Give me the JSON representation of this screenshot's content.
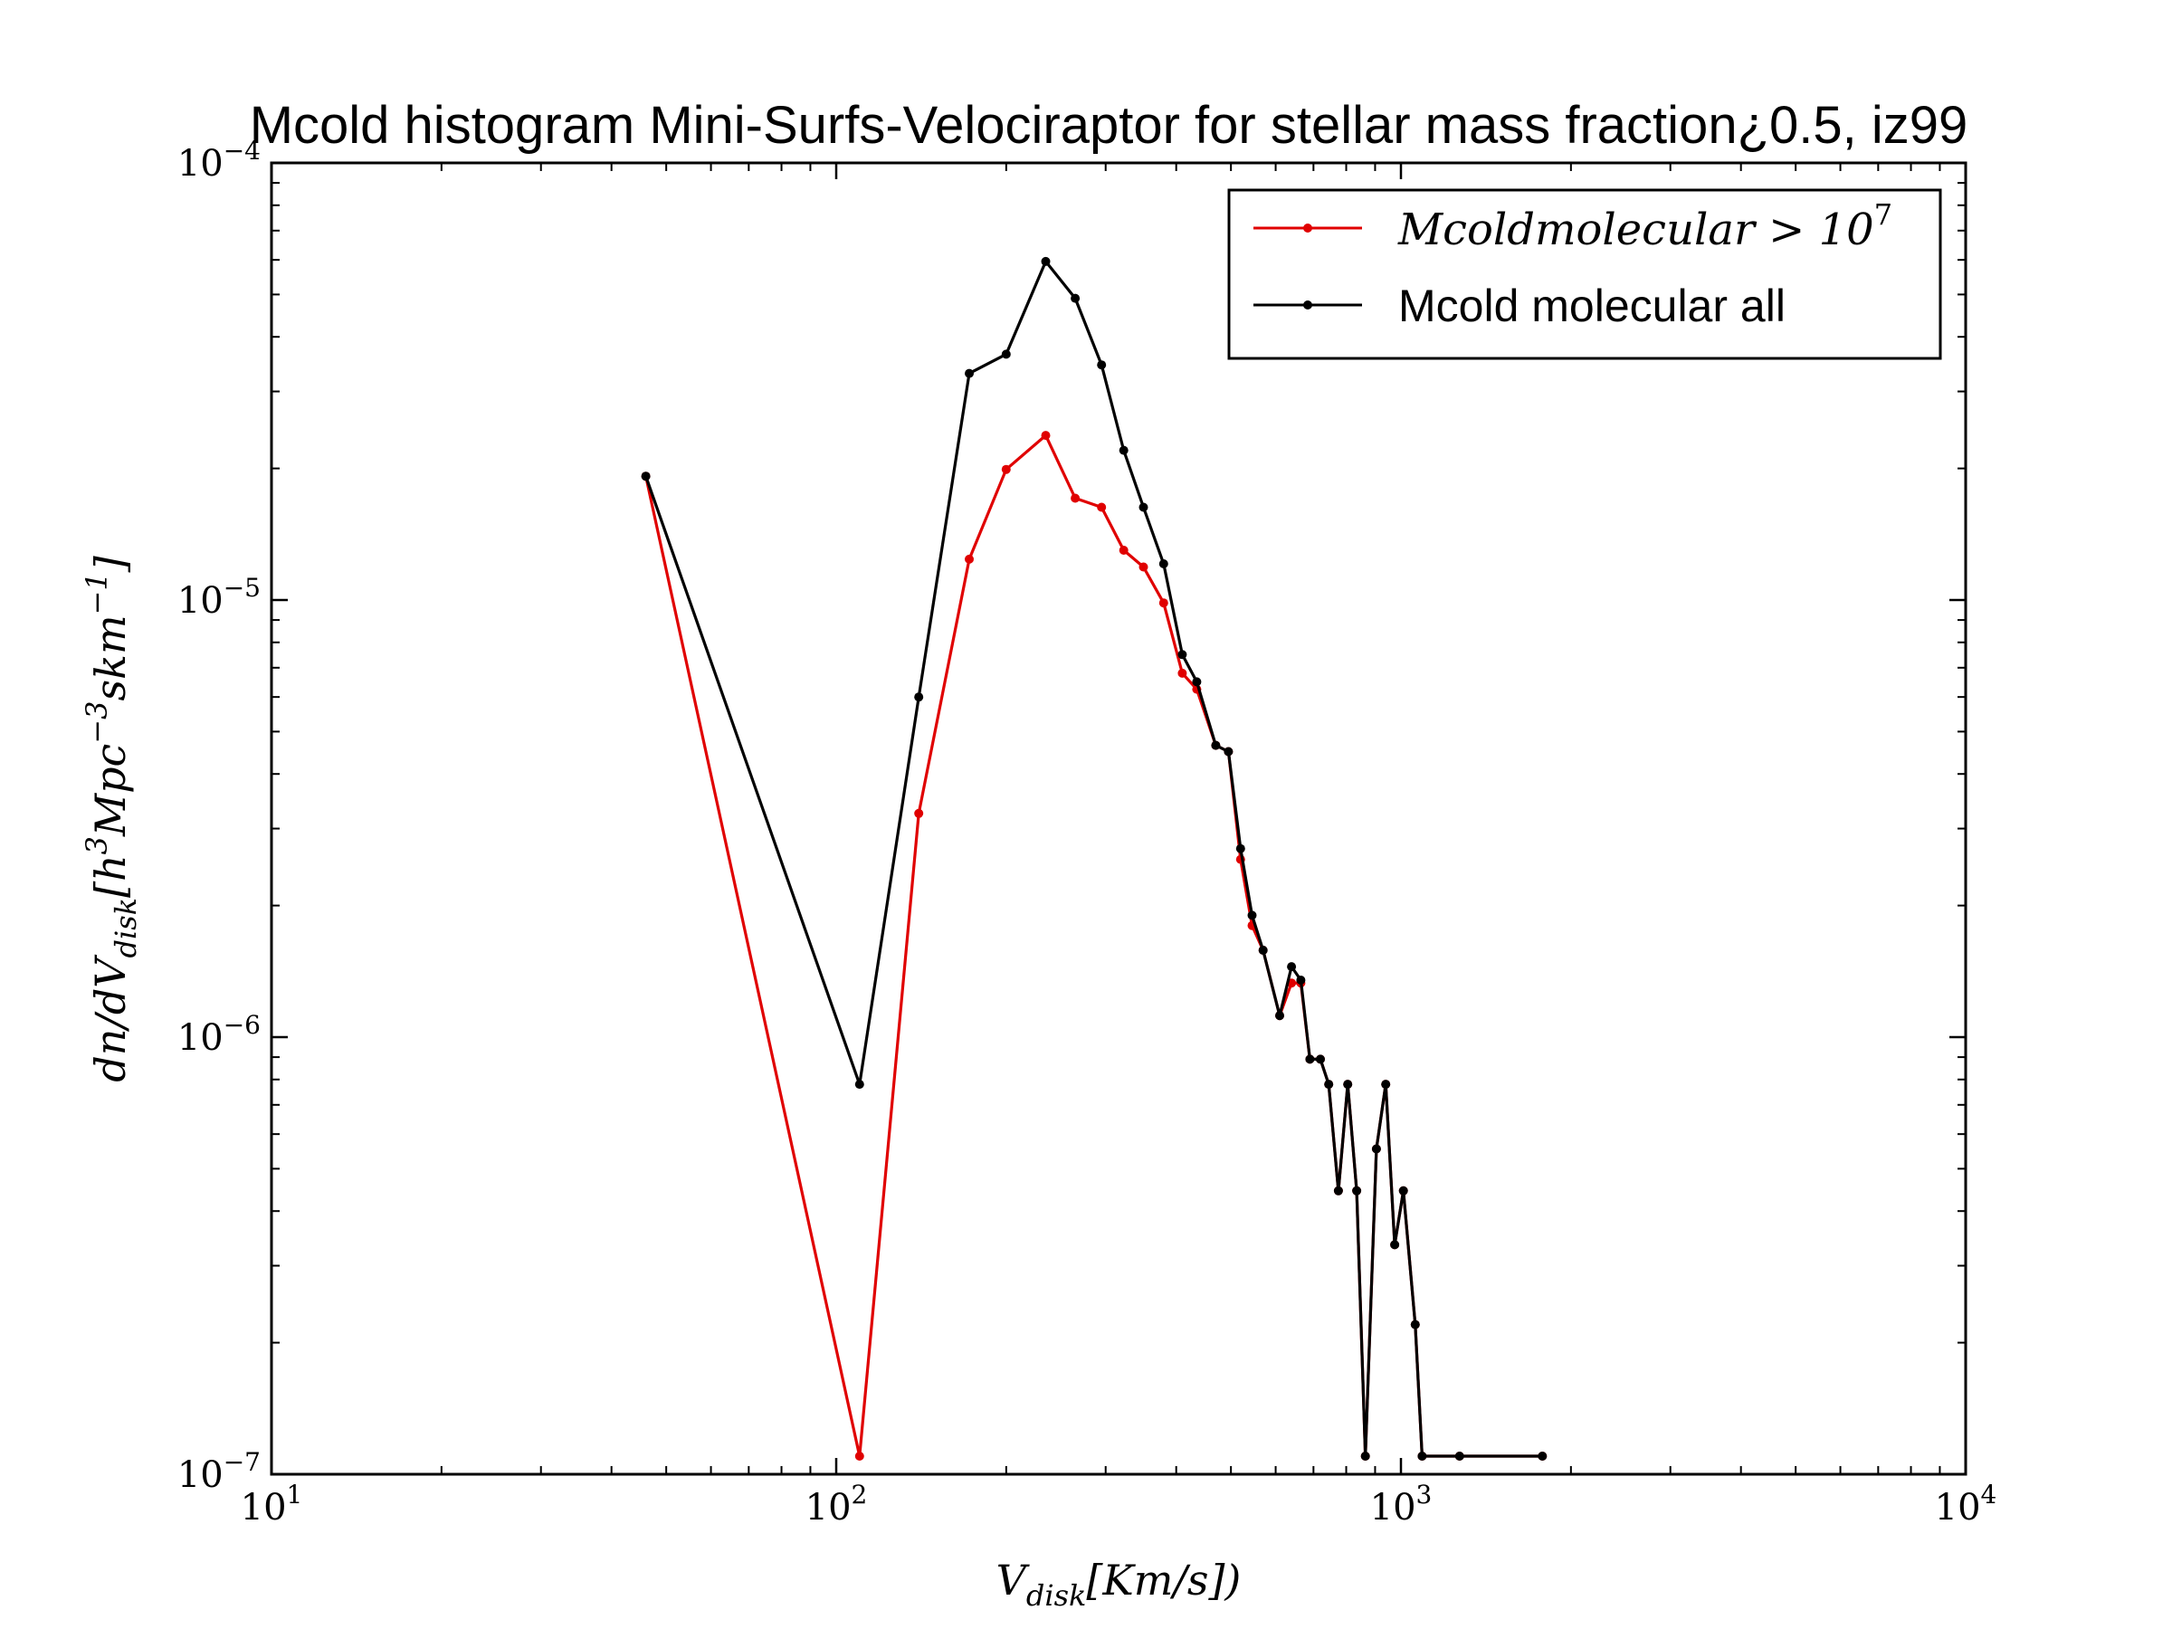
{
  "chart_data": {
    "type": "line",
    "title": "Mcold histogram Mini-Surfs-Velociraptor for stellar mass fraction¿0.5, iz99",
    "xlabel": {
      "base": "V",
      "sub": "disk",
      "rest": "[Km/s])"
    },
    "ylabel": {
      "pre": "dn/dV",
      "sub": "disk",
      "mid1": "[h",
      "sup1": "3",
      "mid2": "Mpc",
      "sup2": "−3",
      "mid3": "skm",
      "sup3": "−1",
      "post": "]"
    },
    "xscale": "log",
    "yscale": "log",
    "xlim": [
      10,
      10000
    ],
    "ylim": [
      1e-07,
      0.0001
    ],
    "x_ticks": [
      {
        "base": "10",
        "exp": "1",
        "value": 10
      },
      {
        "base": "10",
        "exp": "2",
        "value": 100
      },
      {
        "base": "10",
        "exp": "3",
        "value": 1000
      },
      {
        "base": "10",
        "exp": "4",
        "value": 10000
      }
    ],
    "y_ticks": [
      {
        "base": "10",
        "exp": "−7",
        "value": 1e-07
      },
      {
        "base": "10",
        "exp": "−6",
        "value": 1e-06
      },
      {
        "base": "10",
        "exp": "−5",
        "value": 1e-05
      },
      {
        "base": "10",
        "exp": "−4",
        "value": 0.0001
      }
    ],
    "grid": false,
    "legend_position": "top-right",
    "series": [
      {
        "name": "Mcoldmolecular > 10",
        "name_sup": "7",
        "color": "#e00000",
        "x": [
          46,
          110,
          140,
          172,
          200,
          235,
          265,
          295,
          323,
          350,
          380,
          410,
          435,
          470,
          495,
          520,
          545,
          570,
          610,
          640,
          665,
          690,
          720,
          745,
          775,
          805,
          835,
          865,
          905,
          940,
          975,
          1010,
          1060,
          1090,
          1270,
          1780
        ],
        "y": [
          1.92e-05,
          1.1e-07,
          3.25e-06,
          1.24e-05,
          1.99e-05,
          2.38e-05,
          1.71e-05,
          1.63e-05,
          1.3e-05,
          1.19e-05,
          9.85e-06,
          6.8e-06,
          6.25e-06,
          4.65e-06,
          4.5e-06,
          2.55e-06,
          1.8e-06,
          1.58e-06,
          1.12e-06,
          1.33e-06,
          1.33e-06,
          8.9e-07,
          8.9e-07,
          7.8e-07,
          4.45e-07,
          7.8e-07,
          4.45e-07,
          1.1e-07,
          5.55e-07,
          7.8e-07,
          3.35e-07,
          4.45e-07,
          2.2e-07,
          1.1e-07,
          1.1e-07,
          1.1e-07
        ]
      },
      {
        "name": "Mcold molecular all",
        "color": "#000000",
        "x": [
          46,
          110,
          140,
          172,
          200,
          235,
          265,
          295,
          323,
          350,
          380,
          410,
          435,
          470,
          495,
          520,
          545,
          570,
          610,
          640,
          665,
          690,
          720,
          745,
          775,
          805,
          835,
          865,
          905,
          940,
          975,
          1010,
          1060,
          1090,
          1270,
          1780
        ],
        "y": [
          1.92e-05,
          7.8e-07,
          6e-06,
          3.3e-05,
          3.65e-05,
          5.95e-05,
          4.9e-05,
          3.45e-05,
          2.2e-05,
          1.63e-05,
          1.21e-05,
          7.5e-06,
          6.5e-06,
          4.65e-06,
          4.5e-06,
          2.7e-06,
          1.9e-06,
          1.58e-06,
          1.12e-06,
          1.45e-06,
          1.35e-06,
          8.9e-07,
          8.9e-07,
          7.8e-07,
          4.45e-07,
          7.8e-07,
          4.45e-07,
          1.1e-07,
          5.55e-07,
          7.8e-07,
          3.35e-07,
          4.45e-07,
          2.2e-07,
          1.1e-07,
          1.1e-07,
          1.1e-07
        ]
      }
    ]
  }
}
